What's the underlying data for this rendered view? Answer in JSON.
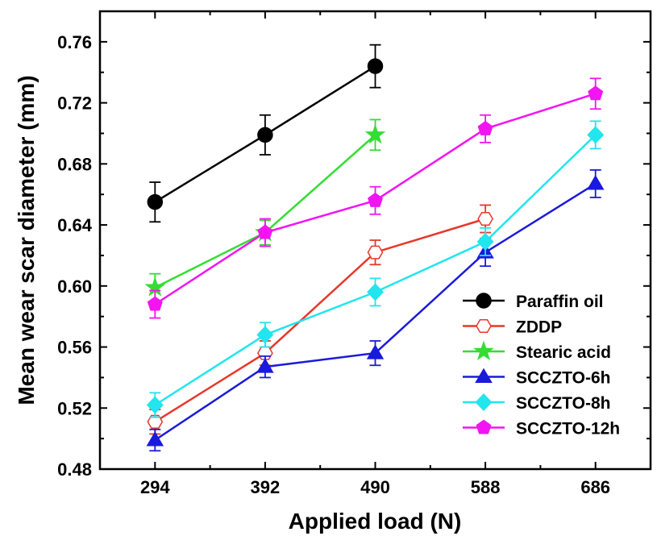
{
  "chart_data": {
    "type": "line",
    "xlabel": "Applied load (N)",
    "ylabel": "Mean wear scar diameter (mm)",
    "x": [
      294,
      392,
      490,
      588,
      686
    ],
    "xtick_labels": [
      "294",
      "392",
      "490",
      "588",
      "686"
    ],
    "xlim": [
      245,
      735
    ],
    "ylim": [
      0.48,
      0.78
    ],
    "yticks": [
      0.48,
      0.52,
      0.56,
      0.6,
      0.64,
      0.68,
      0.72,
      0.76
    ],
    "ytick_labels": [
      "0.48",
      "0.52",
      "0.56",
      "0.60",
      "0.64",
      "0.68",
      "0.72",
      "0.76"
    ],
    "legend_position": "lower-right",
    "series": [
      {
        "name": "Paraffin oil",
        "color": "#000000",
        "marker": "circle",
        "filled": true,
        "x": [
          294,
          392,
          490
        ],
        "values": [
          0.655,
          0.699,
          0.744
        ],
        "errors": [
          0.013,
          0.013,
          0.014
        ]
      },
      {
        "name": "ZDDP",
        "color": "#e8372a",
        "marker": "hexagon",
        "filled": false,
        "x": [
          294,
          392,
          490,
          588
        ],
        "values": [
          0.511,
          0.556,
          0.622,
          0.644
        ],
        "errors": [
          0.008,
          0.008,
          0.008,
          0.009
        ]
      },
      {
        "name": "Stearic acid",
        "color": "#33dd33",
        "marker": "star",
        "filled": true,
        "x": [
          294,
          392,
          490
        ],
        "values": [
          0.599,
          0.635,
          0.699
        ],
        "errors": [
          0.009,
          0.008,
          0.01
        ]
      },
      {
        "name": "SCCZTO-6h",
        "color": "#1a1adb",
        "marker": "triangle",
        "filled": true,
        "x": [
          294,
          392,
          490,
          588,
          686
        ],
        "values": [
          0.499,
          0.547,
          0.556,
          0.622,
          0.667
        ],
        "errors": [
          0.007,
          0.007,
          0.008,
          0.009,
          0.009
        ]
      },
      {
        "name": "SCCZTO-8h",
        "color": "#22e5ee",
        "marker": "diamond",
        "filled": true,
        "x": [
          294,
          392,
          490,
          588,
          686
        ],
        "values": [
          0.522,
          0.568,
          0.596,
          0.629,
          0.699
        ],
        "errors": [
          0.008,
          0.008,
          0.009,
          0.009,
          0.009
        ]
      },
      {
        "name": "SCCZTO-12h",
        "color": "#f214f2",
        "marker": "pentagon",
        "filled": true,
        "x": [
          294,
          392,
          490,
          588,
          686
        ],
        "values": [
          0.588,
          0.635,
          0.656,
          0.703,
          0.726
        ],
        "errors": [
          0.009,
          0.009,
          0.009,
          0.009,
          0.01
        ]
      }
    ]
  }
}
